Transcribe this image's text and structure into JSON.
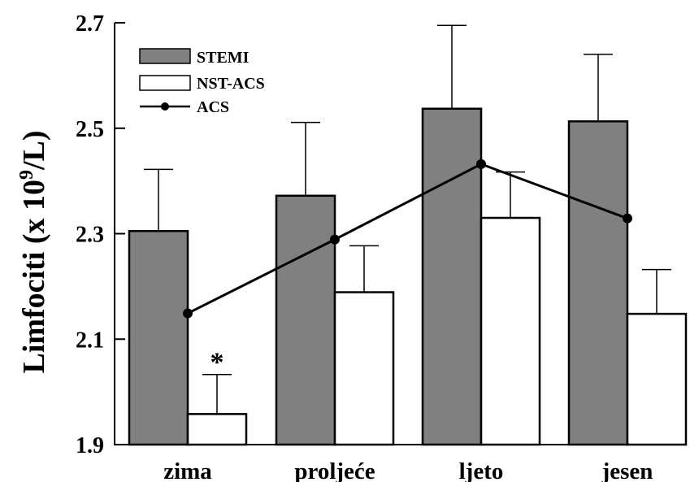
{
  "chart_data": {
    "type": "bar",
    "categories": [
      "zima",
      "proljeće",
      "ljeto",
      "jesen"
    ],
    "ylabel": "Limfociti (x 10",
    "ylabel_sup": "9",
    "ylabel_end": "/L)",
    "ylim": [
      1.9,
      2.7
    ],
    "yticks": [
      1.9,
      2.1,
      2.3,
      2.5,
      2.7
    ],
    "ytick_labels": [
      "1.9",
      "2.1",
      "2.3",
      "2.5",
      "2.7"
    ],
    "grid": false,
    "legend_position": "top-left",
    "series": [
      {
        "name": "STEMI",
        "kind": "bar",
        "color": "#808080",
        "values": [
          2.305,
          2.372,
          2.537,
          2.513
        ],
        "errors": [
          0.117,
          0.139,
          0.158,
          0.127
        ]
      },
      {
        "name": "NST-ACS",
        "kind": "bar",
        "color": "#ffffff",
        "values": [
          1.958,
          2.189,
          2.33,
          2.148
        ],
        "errors": [
          0.075,
          0.088,
          0.087,
          0.084
        ]
      },
      {
        "name": "ACS",
        "kind": "line",
        "color": "#000000",
        "values": [
          2.149,
          2.289,
          2.432,
          2.329
        ]
      }
    ],
    "annotations": [
      {
        "text": "*",
        "category": "zima",
        "series": "NST-ACS"
      }
    ]
  }
}
